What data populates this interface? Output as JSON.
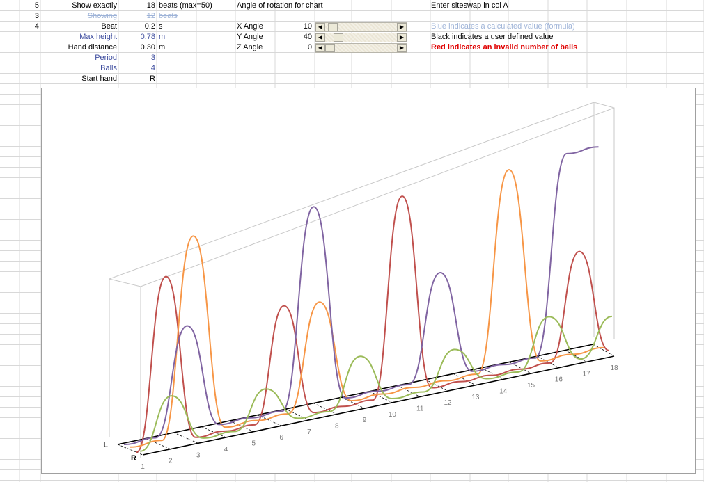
{
  "col_a": [
    "5",
    "3",
    "4"
  ],
  "params": {
    "show_exactly": {
      "label": "Show exactly",
      "value": "18",
      "unit": "beats (max=50)"
    },
    "showing": {
      "label": "Showing",
      "value": "12",
      "unit": "beats"
    },
    "beat": {
      "label": "Beat",
      "value": "0.2",
      "unit": "s"
    },
    "max_height": {
      "label": "Max height",
      "value": "0.78",
      "unit": "m"
    },
    "hand_distance": {
      "label": "Hand distance",
      "value": "0.30",
      "unit": "m"
    },
    "period": {
      "label": "Period",
      "value": "3"
    },
    "balls": {
      "label": "Balls",
      "value": "4"
    },
    "start_hand": {
      "label": "Start hand",
      "value": "R"
    }
  },
  "rotation": {
    "title": "Angle of rotation for chart",
    "x": {
      "label": "X Angle",
      "value": "10"
    },
    "y": {
      "label": "Y Angle",
      "value": "40"
    },
    "z": {
      "label": "Z Angle",
      "value": "0"
    }
  },
  "notes": {
    "enter": "Enter siteswap in col A",
    "blue": "Blue indicates a calculated value (formula)",
    "black": "Black indicates a user defined value",
    "red": "Red indicates an invalid number of balls"
  },
  "chart_data": {
    "type": "line",
    "beat_labels": [
      "1",
      "2",
      "3",
      "4",
      "5",
      "6",
      "7",
      "8",
      "9",
      "10",
      "11",
      "12",
      "13",
      "14",
      "15",
      "16",
      "17",
      "18"
    ],
    "hand_labels": {
      "left": "L",
      "right": "R"
    },
    "series_colors": [
      "#c0504d",
      "#f79646",
      "#8064a2",
      "#9bbb59"
    ],
    "series": [
      {
        "color_index": 0,
        "values": [
          0,
          0.66,
          0.01,
          0.01,
          0.01,
          0.45,
          0.01,
          0.01,
          0.01,
          0.78,
          0.01,
          0.01,
          0.01,
          0.01,
          0.01,
          0.42,
          0.01
        ]
      },
      {
        "color_index": 1,
        "values": [
          0.01,
          0.01,
          0.78,
          0.01,
          0.01,
          0.01,
          0.42,
          0.01,
          0.01,
          0.01,
          0.01,
          0.01,
          0.78,
          0.01,
          0.01,
          0.01
        ]
      },
      {
        "color_index": 2,
        "values": [
          0.01,
          0.01,
          0.42,
          0.01,
          0.01,
          0.01,
          0.78,
          0.01,
          0.01,
          0.01,
          0.42,
          0.01,
          0.01,
          0.01,
          0.78,
          0.78
        ]
      },
      {
        "color_index": 3,
        "values": [
          0.01,
          0.2,
          0.01,
          0.01,
          0.15,
          0.01,
          0.01,
          0.2,
          0.01,
          0.01,
          0.15,
          0.01,
          0.01,
          0.2,
          0.01,
          0.15
        ]
      }
    ]
  }
}
